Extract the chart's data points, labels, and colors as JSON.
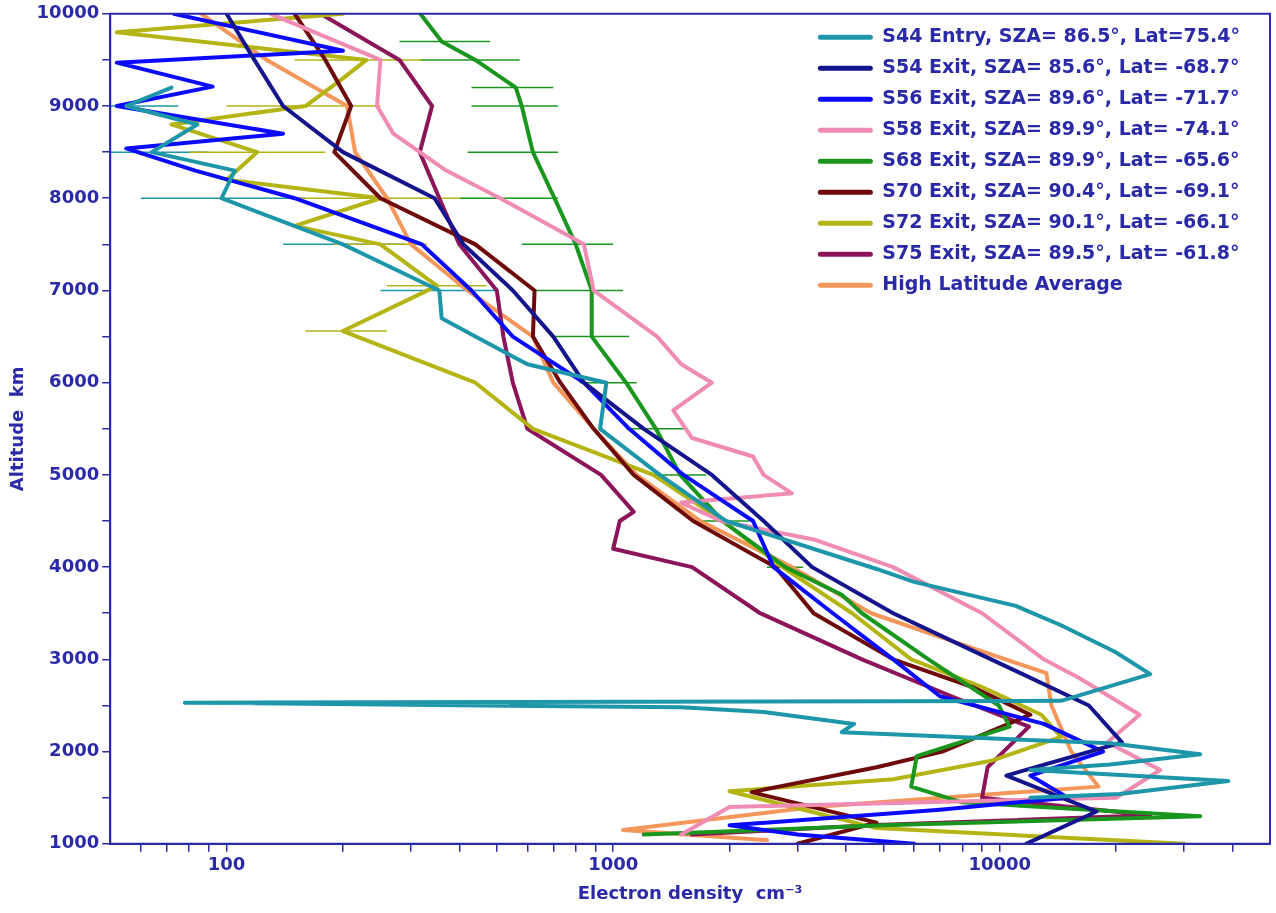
{
  "chart_data": {
    "type": "line",
    "xlabel": "Electron density  cm⁻³",
    "ylabel": "Altitude  km",
    "log": "x",
    "legend": "top right",
    "marker": "none",
    "line_style": "solid",
    "xlim": [
      50,
      50000
    ],
    "ylim": [
      1000,
      10000
    ],
    "xticks": [
      {
        "value": 60,
        "label": null
      },
      {
        "value": 70,
        "label": null
      },
      {
        "value": 80,
        "label": null
      },
      {
        "value": 90,
        "label": null
      },
      100,
      {
        "value": 200,
        "label": null
      },
      {
        "value": 300,
        "label": null
      },
      {
        "value": 400,
        "label": null
      },
      {
        "value": 500,
        "label": null
      },
      {
        "value": 600,
        "label": null
      },
      {
        "value": 700,
        "label": null
      },
      {
        "value": 800,
        "label": null
      },
      {
        "value": 900,
        "label": null
      },
      1000,
      {
        "value": 2000,
        "label": null
      },
      {
        "value": 3000,
        "label": null
      },
      {
        "value": 4000,
        "label": null
      },
      {
        "value": 5000,
        "label": null
      },
      {
        "value": 6000,
        "label": null
      },
      {
        "value": 7000,
        "label": null
      },
      {
        "value": 8000,
        "label": null
      },
      {
        "value": 9000,
        "label": null
      },
      10000,
      {
        "value": 20000,
        "label": null
      },
      {
        "value": 30000,
        "label": null
      },
      {
        "value": 40000,
        "label": null
      }
    ],
    "yticks": [
      1000,
      {
        "value": 1500,
        "label": null
      },
      2000,
      {
        "value": 2500,
        "label": null
      },
      3000,
      {
        "value": 3500,
        "label": null
      },
      4000,
      {
        "value": 4500,
        "label": null
      },
      5000,
      {
        "value": 5500,
        "label": null
      },
      6000,
      {
        "value": 6500,
        "label": null
      },
      7000,
      {
        "value": 7500,
        "label": null
      },
      8000,
      {
        "value": 8500,
        "label": null
      },
      9000,
      {
        "value": 9500,
        "label": null
      },
      10000
    ],
    "series": [
      {
        "name": "S44 Entry, SZA= 86.5°, Lat=75.4°",
        "color": "#1e96aa",
        "x": [
          12000,
          20400,
          39000,
          12000,
          19300,
          33000,
          19300,
          3900,
          4200,
          2450,
          1500,
          78,
          14400,
          24500,
          19900,
          14400,
          11000,
          6000,
          4800,
          1960,
          1320,
          925,
          960,
          600,
          440,
          360,
          355,
          200,
          97,
          105,
          64,
          84,
          55,
          72
        ],
        "values": [
          1500,
          1540,
          1680,
          1800,
          1860,
          1970,
          2090,
          2210,
          2300,
          2430,
          2480,
          2530,
          2550,
          2840,
          3080,
          3370,
          3580,
          3840,
          3980,
          4500,
          5000,
          5500,
          6000,
          6200,
          6500,
          6700,
          7000,
          7500,
          8000,
          8300,
          8500,
          8800,
          9000,
          9200
        ],
        "xerrors": [
          null,
          null,
          null,
          null,
          null,
          null,
          null,
          null,
          null,
          null,
          null,
          null,
          null,
          null,
          null,
          null,
          null,
          null,
          null,
          null,
          null,
          null,
          null,
          null,
          null,
          null,
          [
            250,
            500
          ],
          [
            140,
            290
          ],
          [
            60,
            160
          ],
          null,
          [
            50,
            90
          ],
          null,
          [
            50,
            75
          ],
          null
        ]
      },
      {
        "name": "S54 Exit, SZA= 85.6°, Lat= -68.7°",
        "color": "#14148c",
        "x": [
          11700,
          17800,
          10400,
          20700,
          17000,
          9500,
          5300,
          3270,
          2450,
          1800,
          1200,
          840,
          700,
          550,
          410,
          345,
          200,
          140,
          118,
          100
        ],
        "values": [
          1000,
          1350,
          1740,
          2100,
          2500,
          3000,
          3500,
          4000,
          4500,
          5000,
          5500,
          6000,
          6500,
          7000,
          7500,
          8000,
          8500,
          9000,
          9500,
          10000
        ]
      },
      {
        "name": "S56 Exit, SZA= 89.6°, Lat= -71.7°",
        "color": "#0a0aff",
        "x": [
          6000,
          3000,
          2000,
          7000,
          15000,
          12000,
          18500,
          13000,
          7000,
          5300,
          3700,
          2600,
          2300,
          1520,
          1100,
          840,
          550,
          430,
          320,
          150,
          83,
          55,
          140,
          52,
          92,
          52,
          200,
          73
        ],
        "values": [
          1000,
          1100,
          1200,
          1370,
          1500,
          1740,
          2000,
          2300,
          2600,
          3000,
          3500,
          4000,
          4500,
          5000,
          5500,
          6000,
          6500,
          7000,
          7500,
          8000,
          8300,
          8540,
          8700,
          9000,
          9210,
          9470,
          9600,
          10000
        ]
      },
      {
        "name": "S58 Exit, SZA= 89.9°, Lat= -74.1°",
        "color": "#f08cb4",
        "x": [
          1500,
          2000,
          20000,
          26000,
          19000,
          23000,
          16000,
          13000,
          9000,
          5300,
          3300,
          1900,
          1500,
          2900,
          2450,
          2300,
          1600,
          1430,
          1800,
          1500,
          1300,
          890,
          840,
          510,
          370,
          270,
          245,
          250,
          130
        ],
        "values": [
          1100,
          1400,
          1500,
          1800,
          2100,
          2400,
          2800,
          3000,
          3500,
          4000,
          4300,
          4500,
          4700,
          4800,
          5000,
          5200,
          5400,
          5700,
          6000,
          6200,
          6500,
          7000,
          7500,
          8000,
          8300,
          8700,
          9000,
          9500,
          10000
        ]
      },
      {
        "name": "S68 Exit, SZA= 89.9°, Lat= -65.6°",
        "color": "#19961e",
        "x": [
          1200,
          5000,
          33000,
          8000,
          5900,
          6100,
          10600,
          9940,
          6540,
          4400,
          3900,
          2790,
          1920,
          1490,
          1290,
          1080,
          880,
          880,
          800,
          705,
          620,
          580,
          560,
          440,
          360,
          317
        ],
        "values": [
          1100,
          1200,
          1300,
          1450,
          1620,
          1950,
          2270,
          2500,
          3000,
          3500,
          3700,
          4000,
          4500,
          5000,
          5500,
          6000,
          6500,
          7000,
          7500,
          8000,
          8500,
          9000,
          9200,
          9500,
          9700,
          10000
        ],
        "xerrors": [
          null,
          null,
          null,
          null,
          null,
          null,
          null,
          null,
          null,
          null,
          null,
          [
            2500,
            3100
          ],
          [
            1650,
            2250
          ],
          [
            1270,
            1740
          ],
          [
            1080,
            1550
          ],
          [
            820,
            1150
          ],
          [
            700,
            1100
          ],
          [
            625,
            1060
          ],
          [
            580,
            1000
          ],
          [
            400,
            720
          ],
          [
            420,
            720
          ],
          [
            430,
            720
          ],
          [
            430,
            700
          ],
          [
            316,
            573
          ],
          [
            280,
            480
          ],
          null
        ]
      },
      {
        "name": "S70 Exit, SZA= 90.4°, Lat= -69.1°",
        "color": "#6e0a0a",
        "x": [
          3000,
          4800,
          2280,
          4800,
          7100,
          12000,
          8500,
          5300,
          3300,
          2630,
          1610,
          1130,
          890,
          730,
          620,
          626,
          440,
          250,
          190,
          210,
          180,
          150
        ],
        "values": [
          1000,
          1230,
          1560,
          1830,
          2000,
          2400,
          2700,
          3000,
          3500,
          4000,
          4500,
          5000,
          5500,
          6000,
          6500,
          7000,
          7500,
          8000,
          8500,
          9000,
          9500,
          10000
        ]
      },
      {
        "name": "S72 Exit, SZA= 90.1°, Lat= -66.1°",
        "color": "#b4b414",
        "x": [
          30000,
          4800,
          2000,
          5300,
          9500,
          14400,
          12800,
          9000,
          5900,
          4150,
          2740,
          1920,
          1270,
          620,
          440,
          200,
          350,
          250,
          150,
          250,
          100,
          120,
          72,
          160,
          200,
          230,
          52,
          200
        ],
        "values": [
          1000,
          1170,
          1570,
          1700,
          1900,
          2160,
          2400,
          2700,
          3000,
          3500,
          4000,
          4500,
          5000,
          5500,
          6000,
          6560,
          7050,
          7500,
          7700,
          8000,
          8200,
          8500,
          8800,
          9000,
          9300,
          9500,
          9800,
          10000
        ],
        "xerrors": [
          null,
          null,
          null,
          null,
          null,
          null,
          null,
          null,
          null,
          null,
          null,
          null,
          null,
          null,
          null,
          [
            160,
            260
          ],
          [
            260,
            470
          ],
          [
            190,
            330
          ],
          null,
          [
            150,
            400
          ],
          null,
          [
            80,
            180
          ],
          null,
          [
            100,
            250
          ],
          null,
          [
            150,
            320
          ],
          null,
          null
        ]
      },
      {
        "name": "S75 Exit, SZA= 89.5°, Lat= -61.8°",
        "color": "#8c145a",
        "x": [
          1600,
          4600,
          24500,
          9000,
          9300,
          11900,
          7500,
          4400,
          2400,
          1600,
          1000,
          1040,
          1130,
          930,
          600,
          550,
          520,
          500,
          400,
          355,
          316,
          340,
          280,
          175
        ],
        "values": [
          1100,
          1200,
          1310,
          1500,
          1830,
          2270,
          2600,
          3000,
          3500,
          4000,
          4200,
          4500,
          4600,
          5000,
          5500,
          6000,
          6500,
          7000,
          7500,
          8000,
          8500,
          9000,
          9500,
          10000
        ]
      },
      {
        "name": "High Latitude Average",
        "color": "#f5965a",
        "x": [
          2500,
          1060,
          3300,
          18000,
          15300,
          13600,
          13200,
          7500,
          4650,
          2900,
          1680,
          1150,
          890,
          700,
          620,
          420,
          300,
          260,
          215,
          205,
          127,
          86
        ],
        "values": [
          1040,
          1150,
          1400,
          1620,
          2000,
          2500,
          2850,
          3200,
          3500,
          4000,
          4500,
          5000,
          5500,
          6000,
          6500,
          7000,
          7500,
          8000,
          8500,
          9000,
          9500,
          10000
        ]
      }
    ]
  }
}
